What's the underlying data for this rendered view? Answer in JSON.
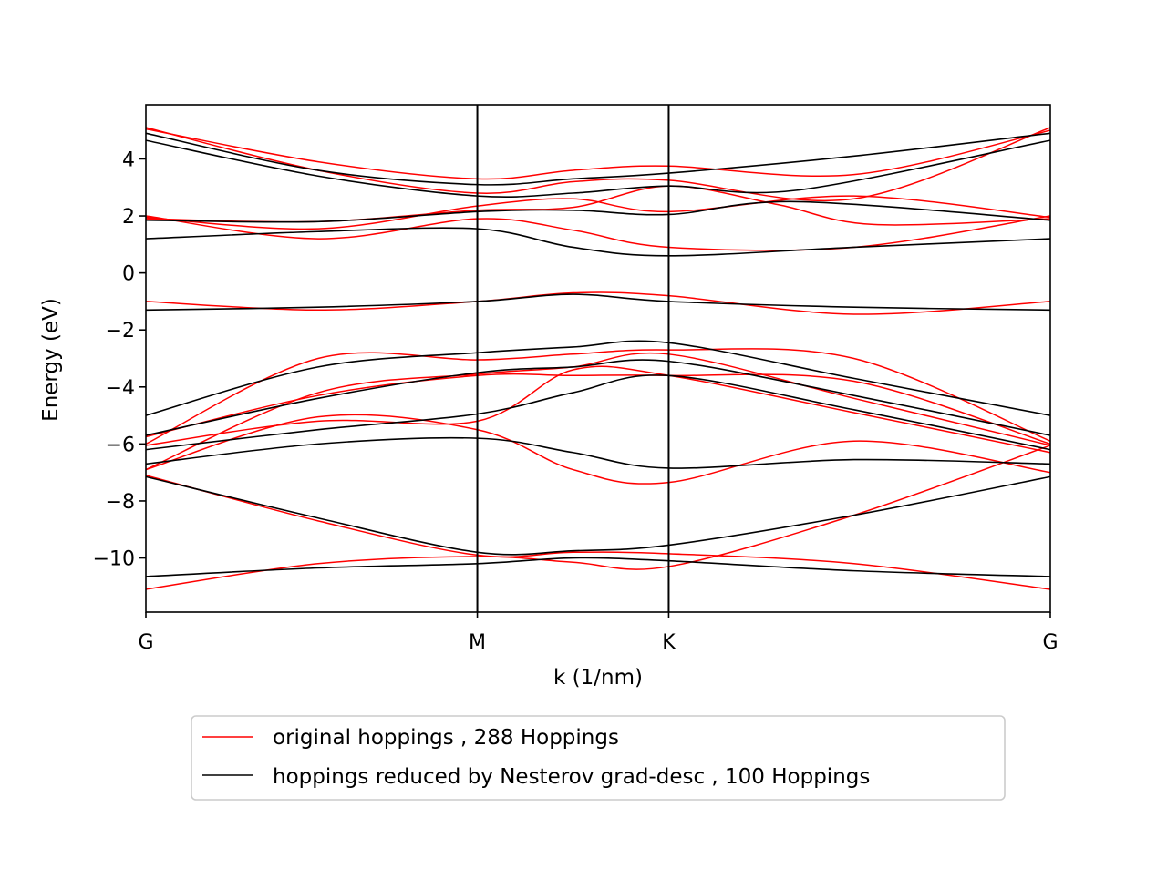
{
  "chart_data": {
    "type": "line",
    "xlabel": "k (1/nm)",
    "ylabel": "Energy (eV)",
    "ylim": [
      -11.9,
      5.9
    ],
    "xlim": [
      0,
      4.726
    ],
    "high_symmetry_points": [
      {
        "label": "G",
        "k": 0
      },
      {
        "label": "M",
        "k": 1.732
      },
      {
        "label": "K",
        "k": 2.732
      },
      {
        "label": "G",
        "k": 4.726
      }
    ],
    "yticks": [
      4,
      2,
      0,
      -2,
      -4,
      -6,
      -8,
      -10
    ],
    "ytick_labels": [
      "4",
      "2",
      "0",
      "−2",
      "−4",
      "−6",
      "−8",
      "−10"
    ],
    "legend_position": "below",
    "colors": {
      "original": "#ff0000",
      "reduced": "#000000"
    },
    "series": [
      {
        "name": "original hoppings , 288 Hoppings",
        "color": "#ff0000",
        "bands": [
          [
            [
              0,
              5.1
            ],
            [
              0.9,
              3.6
            ],
            [
              1.732,
              2.8
            ],
            [
              2.232,
              3.2
            ],
            [
              2.732,
              3.25
            ],
            [
              3.7,
              2.6
            ],
            [
              4.726,
              5.1
            ]
          ],
          [
            [
              0,
              5.05
            ],
            [
              0.9,
              3.9
            ],
            [
              1.732,
              3.3
            ],
            [
              2.232,
              3.6
            ],
            [
              2.732,
              3.75
            ],
            [
              3.7,
              3.45
            ],
            [
              4.726,
              5.0
            ]
          ],
          [
            [
              0,
              2.0
            ],
            [
              0.9,
              1.2
            ],
            [
              1.732,
              1.9
            ],
            [
              2.232,
              1.5
            ],
            [
              2.732,
              0.9
            ],
            [
              3.7,
              0.9
            ],
            [
              4.726,
              2.0
            ]
          ],
          [
            [
              0,
              1.95
            ],
            [
              0.9,
              1.55
            ],
            [
              1.732,
              2.35
            ],
            [
              2.232,
              2.6
            ],
            [
              2.732,
              2.15
            ],
            [
              3.7,
              2.7
            ],
            [
              4.726,
              1.95
            ]
          ],
          [
            [
              0,
              1.9
            ],
            [
              0.9,
              1.8
            ],
            [
              1.732,
              2.2
            ],
            [
              2.232,
              2.3
            ],
            [
              2.732,
              3.05
            ],
            [
              3.3,
              2.4
            ],
            [
              3.8,
              1.7
            ],
            [
              4.726,
              1.9
            ]
          ],
          [
            [
              0,
              -1.0
            ],
            [
              0.9,
              -1.3
            ],
            [
              1.732,
              -1.0
            ],
            [
              2.232,
              -0.7
            ],
            [
              2.732,
              -0.8
            ],
            [
              3.7,
              -1.45
            ],
            [
              4.726,
              -1.0
            ]
          ],
          [
            [
              0,
              -6.0
            ],
            [
              0.9,
              -3.0
            ],
            [
              1.732,
              -3.05
            ],
            [
              2.232,
              -2.85
            ],
            [
              2.732,
              -2.7
            ],
            [
              3.7,
              -3.0
            ],
            [
              4.726,
              -5.9
            ]
          ],
          [
            [
              0,
              -5.75
            ],
            [
              0.9,
              -4.3
            ],
            [
              1.732,
              -3.6
            ],
            [
              2.232,
              -3.6
            ],
            [
              2.732,
              -3.6
            ],
            [
              3.7,
              -3.8
            ],
            [
              4.726,
              -6.0
            ]
          ],
          [
            [
              0,
              -6.9
            ],
            [
              0.9,
              -4.2
            ],
            [
              1.732,
              -3.55
            ],
            [
              2.232,
              -3.3
            ],
            [
              2.732,
              -2.85
            ],
            [
              3.7,
              -4.4
            ],
            [
              4.726,
              -6.05
            ]
          ],
          [
            [
              0,
              -6.05
            ],
            [
              0.9,
              -5.2
            ],
            [
              1.732,
              -5.2
            ],
            [
              2.232,
              -3.4
            ],
            [
              2.732,
              -3.6
            ],
            [
              3.7,
              -4.9
            ],
            [
              4.726,
              -6.3
            ]
          ],
          [
            [
              0,
              -6.9
            ],
            [
              0.9,
              -5.05
            ],
            [
              1.732,
              -5.5
            ],
            [
              2.232,
              -6.9
            ],
            [
              2.732,
              -7.35
            ],
            [
              3.7,
              -5.9
            ],
            [
              4.726,
              -7.0
            ]
          ],
          [
            [
              0,
              -7.1
            ],
            [
              0.9,
              -8.7
            ],
            [
              1.732,
              -9.9
            ],
            [
              2.232,
              -9.8
            ],
            [
              2.732,
              -9.85
            ],
            [
              3.7,
              -10.2
            ],
            [
              4.726,
              -11.1
            ]
          ],
          [
            [
              0,
              -11.1
            ],
            [
              0.9,
              -10.2
            ],
            [
              1.732,
              -9.95
            ],
            [
              2.232,
              -10.15
            ],
            [
              2.732,
              -10.3
            ],
            [
              3.7,
              -8.5
            ],
            [
              4.726,
              -6.05
            ]
          ]
        ]
      },
      {
        "name": "hoppings reduced by Nesterov grad-desc , 100 Hoppings",
        "color": "#000000",
        "bands": [
          [
            [
              0,
              4.65
            ],
            [
              0.9,
              3.4
            ],
            [
              1.732,
              2.7
            ],
            [
              2.232,
              2.8
            ],
            [
              2.732,
              3.05
            ],
            [
              3.4,
              2.9
            ],
            [
              4.726,
              4.65
            ]
          ],
          [
            [
              0,
              4.9
            ],
            [
              0.9,
              3.6
            ],
            [
              1.732,
              3.1
            ],
            [
              2.232,
              3.3
            ],
            [
              2.732,
              3.5
            ],
            [
              3.7,
              4.1
            ],
            [
              4.726,
              4.9
            ]
          ],
          [
            [
              0,
              1.85
            ],
            [
              0.9,
              1.8
            ],
            [
              1.732,
              2.15
            ],
            [
              2.232,
              2.2
            ],
            [
              2.732,
              2.05
            ],
            [
              3.4,
              2.5
            ],
            [
              4.726,
              1.85
            ]
          ],
          [
            [
              0,
              1.2
            ],
            [
              0.9,
              1.45
            ],
            [
              1.732,
              1.55
            ],
            [
              2.232,
              0.9
            ],
            [
              2.732,
              0.6
            ],
            [
              3.7,
              0.9
            ],
            [
              4.726,
              1.2
            ]
          ],
          [
            [
              0,
              -1.3
            ],
            [
              0.9,
              -1.2
            ],
            [
              1.732,
              -1.0
            ],
            [
              2.232,
              -0.75
            ],
            [
              2.732,
              -1.0
            ],
            [
              3.7,
              -1.2
            ],
            [
              4.726,
              -1.3
            ]
          ],
          [
            [
              0,
              -5.0
            ],
            [
              0.9,
              -3.3
            ],
            [
              1.732,
              -2.8
            ],
            [
              2.232,
              -2.6
            ],
            [
              2.732,
              -2.45
            ],
            [
              3.7,
              -3.7
            ],
            [
              4.726,
              -5.0
            ]
          ],
          [
            [
              0,
              -5.7
            ],
            [
              0.9,
              -4.4
            ],
            [
              1.732,
              -3.5
            ],
            [
              2.232,
              -3.3
            ],
            [
              2.732,
              -3.1
            ],
            [
              3.7,
              -4.3
            ],
            [
              4.726,
              -5.7
            ]
          ],
          [
            [
              0,
              -6.2
            ],
            [
              0.9,
              -5.5
            ],
            [
              1.732,
              -4.95
            ],
            [
              2.232,
              -4.2
            ],
            [
              2.732,
              -3.6
            ],
            [
              3.7,
              -4.8
            ],
            [
              4.726,
              -6.2
            ]
          ],
          [
            [
              0,
              -6.7
            ],
            [
              0.9,
              -6.0
            ],
            [
              1.732,
              -5.8
            ],
            [
              2.232,
              -6.3
            ],
            [
              2.732,
              -6.85
            ],
            [
              3.7,
              -6.55
            ],
            [
              4.726,
              -6.7
            ]
          ],
          [
            [
              0,
              -7.15
            ],
            [
              0.9,
              -8.6
            ],
            [
              1.732,
              -9.8
            ],
            [
              2.232,
              -9.75
            ],
            [
              2.732,
              -9.55
            ],
            [
              3.7,
              -8.5
            ],
            [
              4.726,
              -7.15
            ]
          ],
          [
            [
              0,
              -10.65
            ],
            [
              0.9,
              -10.35
            ],
            [
              1.732,
              -10.2
            ],
            [
              2.232,
              -10.0
            ],
            [
              2.732,
              -10.1
            ],
            [
              3.7,
              -10.45
            ],
            [
              4.726,
              -10.65
            ]
          ]
        ]
      }
    ]
  }
}
